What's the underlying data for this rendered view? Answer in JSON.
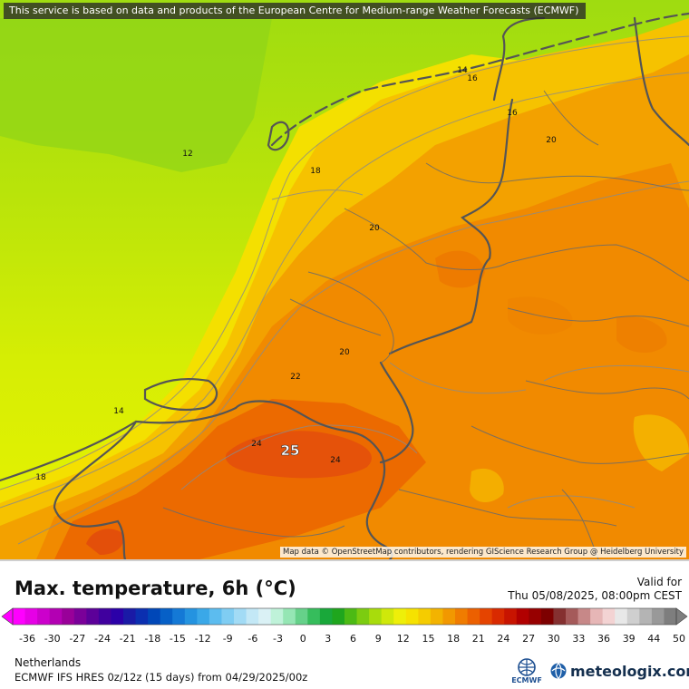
{
  "notice": "This service is based on data and products of the European Centre for Medium-range Weather Forecasts (ECMWF)",
  "map_credit": "Map data © OpenStreetMap contributors, rendering GIScience Research Group @ Heidelberg University",
  "title": "Max. temperature, 6h (°C)",
  "valid_label": "Valid for",
  "valid_time": "Thu 05/08/2025, 08:00pm CEST",
  "region": "Netherlands",
  "model_info": "ECMWF IFS HRES 0z/12z (15 days) from 04/29/2025/00z",
  "brand": "meteologix.com",
  "ecmwf_logo_text": "ECMWF",
  "contour_labels": [
    {
      "value": "12"
    },
    {
      "value": "14"
    },
    {
      "value": "16"
    },
    {
      "value": "16"
    },
    {
      "value": "18"
    },
    {
      "value": "20"
    },
    {
      "value": "20"
    },
    {
      "value": "22"
    },
    {
      "value": "24"
    },
    {
      "value": "24"
    },
    {
      "value": "25"
    },
    {
      "value": "14"
    },
    {
      "value": "18"
    },
    {
      "value": "20"
    }
  ],
  "legend": {
    "ticks": [
      "-36",
      "-30",
      "-27",
      "-24",
      "-21",
      "-18",
      "-15",
      "-12",
      "-9",
      "-6",
      "-3",
      "0",
      "3",
      "6",
      "9",
      "12",
      "15",
      "18",
      "21",
      "24",
      "27",
      "30",
      "33",
      "36",
      "39",
      "44",
      "50"
    ],
    "colors": [
      "#ff00ff",
      "#e600e6",
      "#cc00cc",
      "#b300b3",
      "#990099",
      "#7a0099",
      "#5c0099",
      "#40009e",
      "#2b00a8",
      "#1a1aa6",
      "#0b2fb0",
      "#0047b8",
      "#0660c7",
      "#1479d6",
      "#2493e0",
      "#3aa8e8",
      "#5cbcef",
      "#7fcdf3",
      "#a2dbf5",
      "#c3e8f6",
      "#daf1f5",
      "#bff2d9",
      "#95e6b4",
      "#66d18a",
      "#36bd5c",
      "#19a83a",
      "#1fa61d",
      "#4cba14",
      "#7ccc10",
      "#a8dc0c",
      "#cfe80a",
      "#eeef09",
      "#f6e200",
      "#f5cc00",
      "#f3b300",
      "#f29800",
      "#f07c00",
      "#ec6000",
      "#e54400",
      "#d92a00",
      "#c81400",
      "#b10000",
      "#970000",
      "#7d0000",
      "#853030",
      "#a55a5a",
      "#c78888",
      "#e6b6b6",
      "#f3d3d3",
      "#e8e8e8",
      "#cfcfcf",
      "#b4b4b4",
      "#999999",
      "#7e7e7e"
    ]
  },
  "colors": {
    "map_sea": "#ddf000",
    "map_land": "#f39b00",
    "hot_core": "#ea5a06"
  }
}
